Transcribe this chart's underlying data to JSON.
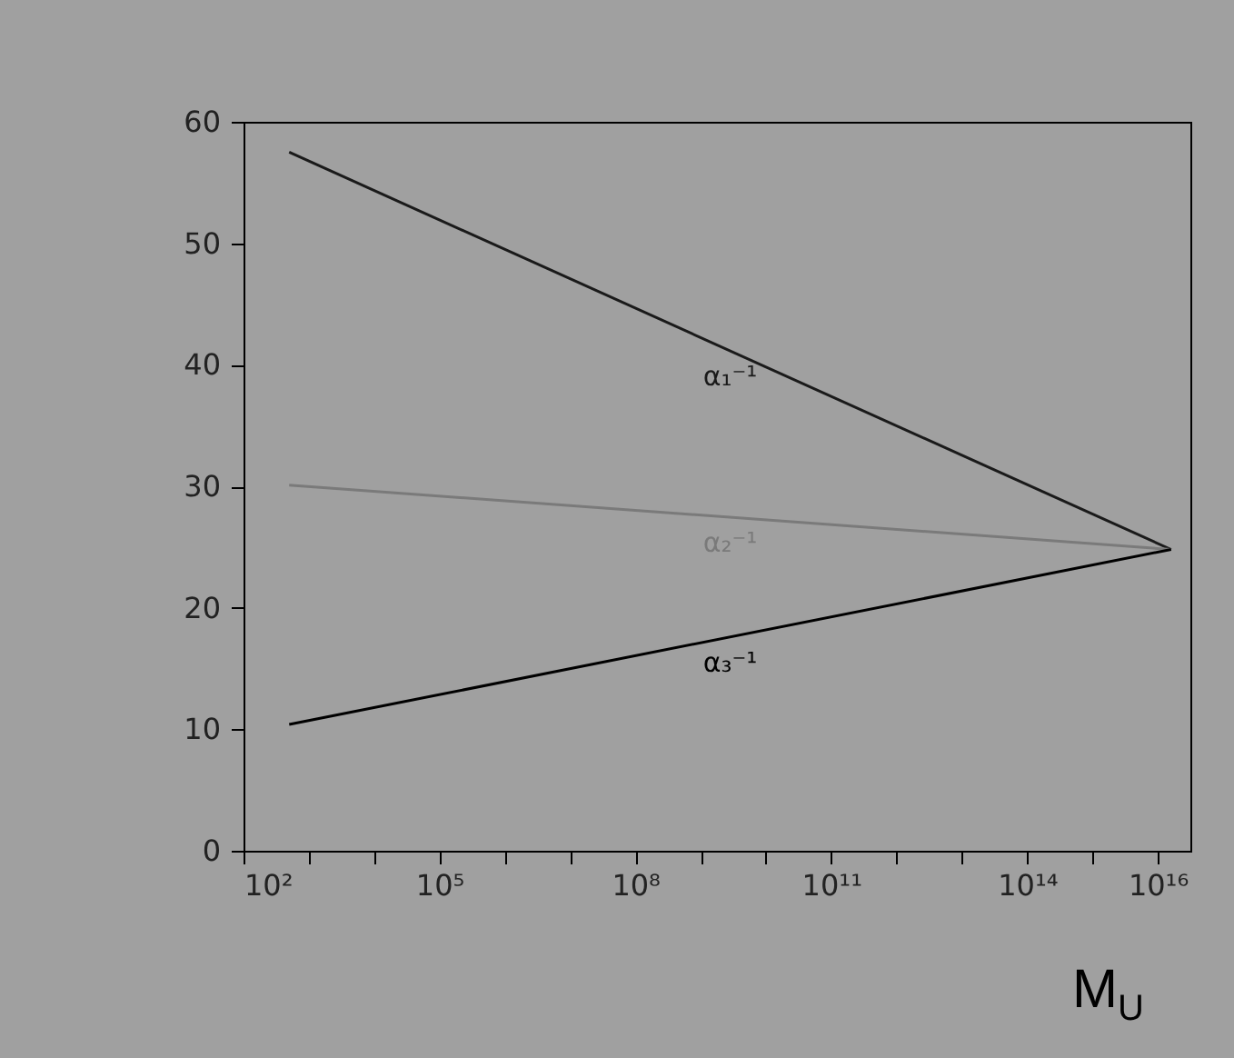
{
  "chart_data": {
    "type": "line",
    "xlabel": "M$_{U}$",
    "log": "x",
    "grid": false,
    "xlim": [
      100,
      3.16e+16
    ],
    "xticks": [
      {
        "value": 100,
        "label": "10²"
      },
      {
        "value": 1000,
        "label": null
      },
      {
        "value": 10000,
        "label": null
      },
      {
        "value": 100000,
        "label": "10⁵"
      },
      {
        "value": 1000000,
        "label": null
      },
      {
        "value": 10000000,
        "label": null
      },
      {
        "value": 100000000,
        "label": "10⁸"
      },
      {
        "value": 1000000000,
        "label": null
      },
      {
        "value": 10000000000,
        "label": null
      },
      {
        "value": 100000000000,
        "label": "10¹¹"
      },
      {
        "value": 1000000000000,
        "label": null
      },
      {
        "value": 10000000000000,
        "label": null
      },
      {
        "value": 100000000000000,
        "label": "10¹⁴"
      },
      {
        "value": 1000000000000000,
        "label": null
      },
      {
        "value": 10000000000000000,
        "label": "10¹⁶"
      }
    ],
    "x": [
      500,
      16000000000000000
    ],
    "ylim": [
      0,
      60
    ],
    "yticks": [
      0,
      10,
      20,
      30,
      40,
      50,
      60
    ],
    "series": [
      {
        "name": "α₁⁻¹",
        "color": "#1a1a1a",
        "values": [
          57.5,
          24.8
        ]
      },
      {
        "name": "α₂⁻¹",
        "color": "#7a7a7a",
        "values": [
          30.1,
          24.8
        ]
      },
      {
        "name": "α₃⁻¹",
        "color": "#000000",
        "values": [
          10.4,
          24.8
        ]
      }
    ]
  }
}
